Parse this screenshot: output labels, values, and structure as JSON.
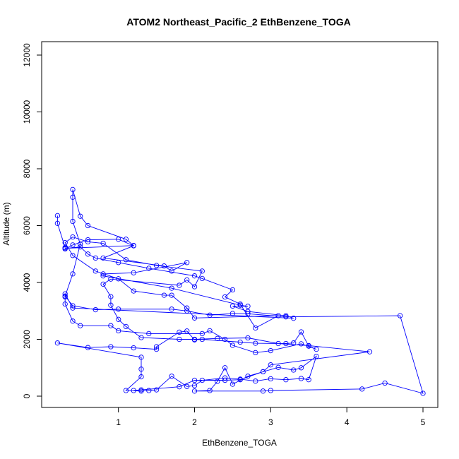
{
  "chart_data": {
    "type": "line",
    "title": "ATOM2 Northeast_Pacific_2 EthBenzene_TOGA",
    "xlabel": "EthBenzene_TOGA",
    "ylabel": "Altitude (m)",
    "xlim": [
      0.15,
      5.0
    ],
    "ylim": [
      0,
      12000
    ],
    "x_ticks": [
      1,
      2,
      3,
      4,
      5
    ],
    "y_ticks": [
      0,
      2000,
      4000,
      6000,
      8000,
      10000,
      12000
    ],
    "grid": false,
    "legend": "none",
    "markers": "open-circle",
    "color": "#0000ff",
    "series": [
      {
        "points": [
          [
            0.2,
            6350
          ],
          [
            0.2,
            6080
          ],
          [
            0.3,
            5230
          ],
          [
            0.3,
            5180
          ],
          [
            0.4,
            5320
          ],
          [
            0.6,
            5500
          ],
          [
            1.0,
            5520
          ],
          [
            1.2,
            5290
          ],
          [
            0.8,
            4860
          ],
          [
            1.6,
            4580
          ],
          [
            1.7,
            4400
          ],
          [
            1.9,
            4700
          ],
          [
            1.2,
            4340
          ],
          [
            0.8,
            4300
          ],
          [
            0.8,
            4230
          ],
          [
            1.7,
            3800
          ],
          [
            2.6,
            3200
          ],
          [
            2.7,
            3160
          ],
          [
            2.5,
            3170
          ],
          [
            2.7,
            2980
          ],
          [
            3.2,
            2830
          ],
          [
            3.3,
            2740
          ],
          [
            0.4,
            3100
          ],
          [
            0.3,
            3600
          ],
          [
            0.3,
            3490
          ],
          [
            0.3,
            3240
          ],
          [
            0.4,
            2640
          ],
          [
            0.5,
            2480
          ],
          [
            0.9,
            2480
          ],
          [
            1.0,
            2300
          ],
          [
            1.4,
            2200
          ],
          [
            2.1,
            2200
          ],
          [
            2.2,
            2300
          ],
          [
            2.4,
            2000
          ],
          [
            2.5,
            1790
          ],
          [
            2.8,
            1530
          ],
          [
            3.0,
            1600
          ],
          [
            3.4,
            1840
          ],
          [
            3.6,
            1650
          ],
          [
            3.5,
            1760
          ],
          [
            3.4,
            2260
          ],
          [
            3.3,
            1870
          ],
          [
            3.2,
            1850
          ],
          [
            2.8,
            1860
          ],
          [
            2.6,
            1900
          ],
          [
            2.1,
            2000
          ],
          [
            2.0,
            1980
          ],
          [
            1.9,
            2290
          ],
          [
            1.8,
            2250
          ],
          [
            1.5,
            1740
          ],
          [
            1.5,
            1650
          ],
          [
            1.2,
            1700
          ],
          [
            0.9,
            1740
          ],
          [
            0.6,
            1710
          ],
          [
            0.2,
            1870
          ],
          [
            1.3,
            1370
          ],
          [
            1.3,
            950
          ],
          [
            1.3,
            680
          ],
          [
            1.1,
            200
          ],
          [
            1.3,
            180
          ],
          [
            1.4,
            200
          ],
          [
            1.5,
            220
          ],
          [
            1.7,
            700
          ],
          [
            1.9,
            340
          ],
          [
            2.0,
            370
          ],
          [
            2.1,
            560
          ],
          [
            2.4,
            640
          ],
          [
            2.6,
            600
          ],
          [
            2.8,
            530
          ],
          [
            3.0,
            610
          ],
          [
            3.2,
            580
          ],
          [
            3.4,
            620
          ],
          [
            3.5,
            580
          ],
          [
            3.6,
            1400
          ],
          [
            3.4,
            1000
          ],
          [
            3.3,
            920
          ],
          [
            3.1,
            1010
          ],
          [
            2.9,
            860
          ],
          [
            2.7,
            700
          ],
          [
            2.5,
            420
          ],
          [
            2.4,
            1000
          ],
          [
            2.3,
            520
          ],
          [
            2.2,
            200
          ],
          [
            2.0,
            180
          ],
          [
            2.9,
            180
          ],
          [
            3.0,
            200
          ],
          [
            4.2,
            250
          ],
          [
            4.5,
            460
          ],
          [
            5.0,
            100
          ],
          [
            4.7,
            2830
          ],
          [
            3.2,
            2790
          ],
          [
            2.7,
            2900
          ],
          [
            2.5,
            2910
          ],
          [
            2.2,
            2850
          ],
          [
            1.9,
            3000
          ],
          [
            1.7,
            3060
          ],
          [
            1.0,
            3060
          ],
          [
            0.7,
            3040
          ],
          [
            0.4,
            3180
          ],
          [
            0.3,
            3520
          ],
          [
            0.4,
            4300
          ],
          [
            0.5,
            5350
          ],
          [
            0.4,
            6150
          ],
          [
            0.4,
            7000
          ],
          [
            0.4,
            7270
          ],
          [
            0.5,
            6330
          ],
          [
            0.6,
            6000
          ],
          [
            1.1,
            5520
          ],
          [
            1.2,
            5300
          ],
          [
            0.3,
            5200
          ],
          [
            0.5,
            5250
          ],
          [
            0.6,
            5000
          ],
          [
            0.7,
            4860
          ],
          [
            1.0,
            4700
          ],
          [
            1.4,
            4500
          ],
          [
            2.0,
            4230
          ],
          [
            2.1,
            4140
          ],
          [
            2.5,
            3740
          ],
          [
            2.4,
            3490
          ],
          [
            2.6,
            3240
          ],
          [
            2.8,
            2400
          ],
          [
            3.1,
            2830
          ],
          [
            2.0,
            2750
          ],
          [
            1.9,
            3100
          ],
          [
            1.7,
            3550
          ],
          [
            1.6,
            3550
          ],
          [
            1.2,
            3700
          ],
          [
            1.0,
            4130
          ],
          [
            0.7,
            4400
          ],
          [
            0.4,
            4950
          ],
          [
            0.3,
            5400
          ],
          [
            0.4,
            5600
          ],
          [
            0.6,
            5430
          ],
          [
            0.8,
            5380
          ],
          [
            1.1,
            4800
          ],
          [
            1.5,
            4600
          ],
          [
            2.1,
            4400
          ],
          [
            2.0,
            3850
          ],
          [
            1.9,
            4090
          ],
          [
            1.8,
            3900
          ],
          [
            0.9,
            4120
          ],
          [
            0.8,
            3940
          ],
          [
            0.9,
            3500
          ],
          [
            0.9,
            3200
          ],
          [
            1.0,
            2700
          ],
          [
            1.1,
            2450
          ],
          [
            1.3,
            2060
          ],
          [
            1.8,
            2000
          ],
          [
            2.0,
            2000
          ],
          [
            2.3,
            2030
          ],
          [
            2.7,
            2050
          ],
          [
            3.1,
            1850
          ],
          [
            3.5,
            1780
          ],
          [
            4.3,
            1560
          ],
          [
            3.0,
            1100
          ],
          [
            2.9,
            860
          ],
          [
            2.6,
            580
          ],
          [
            2.4,
            560
          ],
          [
            2.0,
            560
          ],
          [
            1.8,
            330
          ],
          [
            1.3,
            220
          ],
          [
            1.2,
            200
          ]
        ]
      }
    ]
  }
}
